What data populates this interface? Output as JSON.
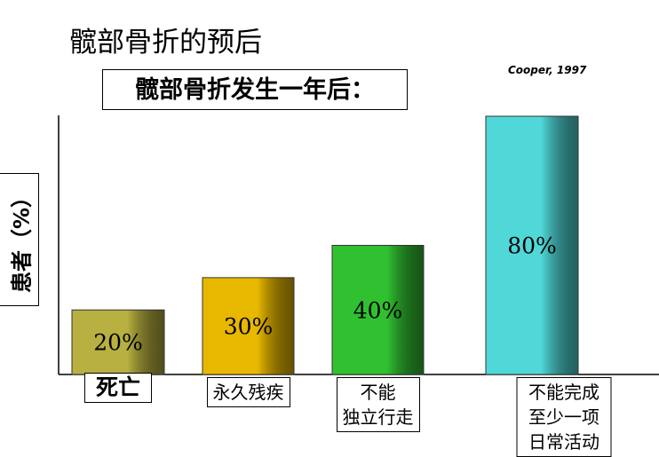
{
  "chart_data": {
    "type": "bar",
    "title": "髋部骨折的预后",
    "subtitle": "髋部骨折发生一年后：",
    "source": "Cooper, 1997",
    "y_label": "患者（%）",
    "categories": [
      "死亡",
      "永久残疾",
      "不能\n独立行走",
      "不能完成\n至少一项日常活动"
    ],
    "values": [
      20,
      30,
      40,
      80
    ],
    "value_labels": [
      "20%",
      "30%",
      "40%",
      "80%"
    ],
    "colors": [
      "#b8b040",
      "#e8b800",
      "#30c030",
      "#50d8d8"
    ],
    "ylim": [
      0,
      80
    ]
  }
}
